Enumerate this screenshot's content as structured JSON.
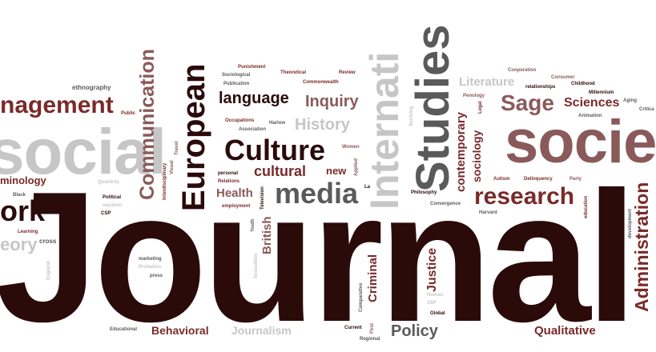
{
  "colors": {
    "background": "#ffffff",
    "dark": "#2b0a0a",
    "maroon": "#7a2a2a",
    "rose": "#8a5a5a",
    "grey": "#9a9a9a",
    "light_grey": "#c6c6c6",
    "dark_grey": "#5a5a5a"
  },
  "words": {
    "journal": "Journal",
    "social": "social",
    "society": "socie",
    "studies": "Studies",
    "international": "Internati",
    "culture": "Culture",
    "media": "media",
    "european": "European",
    "communication": "Communication",
    "management": "nagement",
    "work": "ork",
    "research": "research",
    "sage": "Sage",
    "sciences": "Sciences",
    "administration": "Administration",
    "language": "language",
    "inquiry": "Inquiry",
    "history": "History",
    "cultural": "cultural",
    "new": "new",
    "health": "Health",
    "policy": "Policy",
    "behavioral": "Behavioral",
    "journalism": "Journalism",
    "qualitative": "Qualitative",
    "justice": "Justice",
    "criminal": "Criminal",
    "british": "British",
    "contemporary": "contemporary",
    "sociology": "sociology",
    "literature": "Literature",
    "criminology": "minology",
    "theory": "eory",
    "ethnography": "ethnography",
    "public": "Public",
    "black": "Black",
    "quarterly": "Quarterly",
    "interdisciplinary": "Interdisciplinary",
    "visual": "Visual",
    "travel": "Travel",
    "political": "Political",
    "vacation": "vacation",
    "csp": "CSP",
    "learning": "Learning",
    "cross": "cross",
    "england": "England",
    "marketing": "marketing",
    "probation": "Probation",
    "press": "press",
    "educational": "Educational",
    "punishment": "Punishment",
    "sociological": "Sociological",
    "publication": "Publication",
    "theoretical": "Theoretical",
    "review": "Review",
    "commonwealth": "Commonwealth",
    "occupations": "Occupations",
    "harlow": "Harlow",
    "association": "Association",
    "women": "Women",
    "applied": "Applied",
    "personal": "personal",
    "relations": "Relations",
    "television": "Television",
    "employment": "employment",
    "youth": "Youth",
    "sexualities": "Sexualities",
    "la": "La",
    "philosophy": "Philosophy",
    "convergence": "Convergence",
    "autism": "Autism",
    "delinquency": "Delinquency",
    "party": "Party",
    "harvard": "Harvard",
    "education": "education",
    "development": "development",
    "cooperation": "Cooperation",
    "consumer": "Consumer",
    "relationships": "relationships",
    "childhood": "Childhood",
    "millennium": "Millennium",
    "aging": "Aging",
    "critical": "Critica",
    "animation": "Animation",
    "penology": "Penology",
    "legal": "Legal",
    "sociolog_small": "Sociolog",
    "comparative": "Comparative",
    "human": "Human",
    "jsp": "JSP",
    "global": "Global",
    "current": "Current",
    "first": "First",
    "regional": "Regional"
  }
}
